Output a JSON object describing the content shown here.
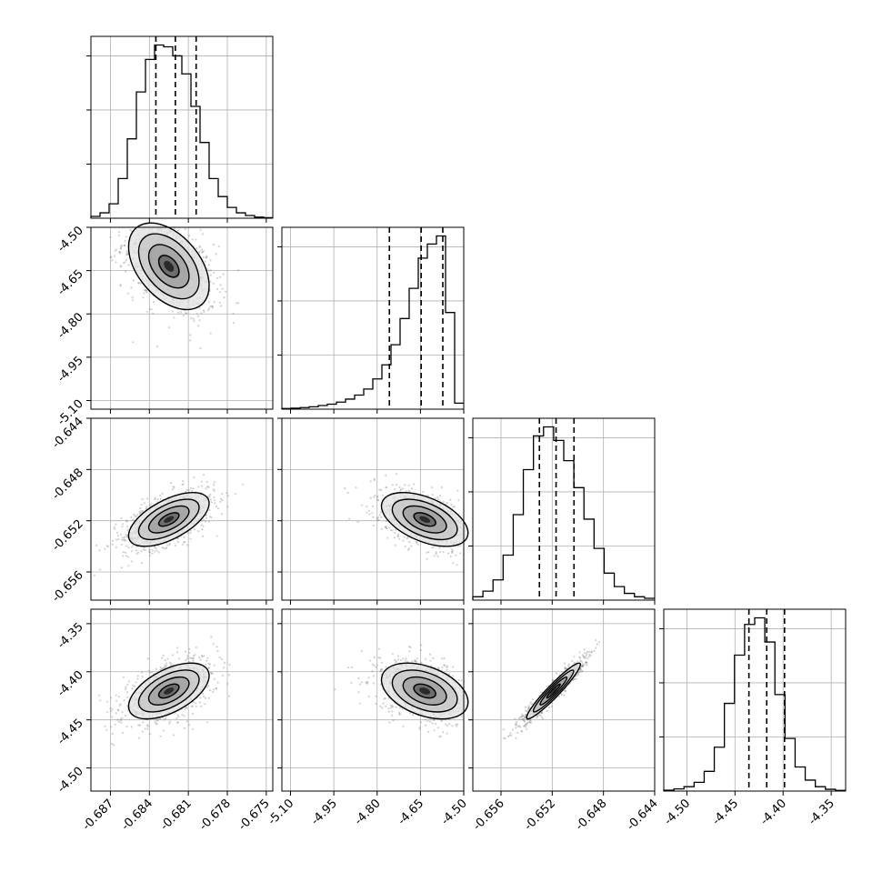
{
  "chart_data": {
    "type": "corner",
    "grid": true,
    "colors": {
      "frame": "#000000",
      "grid": "#b0b0b0",
      "hist": "#000000",
      "points": "#7f7f7f"
    },
    "quantiles": [
      0.16,
      0.5,
      0.84
    ],
    "params": [
      {
        "range": [
          -0.6885,
          -0.6745
        ],
        "ticks": [
          "-0.687",
          "-0.684",
          "-0.681",
          "-0.678",
          "-0.675"
        ],
        "tick_values": [
          -0.687,
          -0.684,
          -0.681,
          -0.678,
          -0.675
        ],
        "quantile_values": [
          -0.6835,
          -0.682,
          -0.6804
        ],
        "hist_counts": [
          1,
          3,
          8,
          22,
          44,
          70,
          88,
          96,
          95,
          90,
          80,
          62,
          42,
          22,
          12,
          6,
          3,
          1.5,
          0.6,
          0.3
        ]
      },
      {
        "range": [
          -5.13,
          -4.5
        ],
        "ticks": [
          "-5.10",
          "-4.95",
          "-4.80",
          "-4.65",
          "-4.50"
        ],
        "tick_values": [
          -5.1,
          -4.95,
          -4.8,
          -4.65,
          -4.5
        ],
        "quantile_values": [
          -4.7575,
          -4.6475,
          -4.5725
        ],
        "hist_counts": [
          0.3,
          0.5,
          0.8,
          1.2,
          1.8,
          2.5,
          3.5,
          5,
          7,
          10,
          15,
          22,
          32,
          45,
          60,
          75,
          82,
          86,
          48,
          3
        ]
      },
      {
        "range": [
          -0.6582,
          -0.644
        ],
        "ticks": [
          "-0.656",
          "-0.652",
          "-0.648",
          "-0.644"
        ],
        "tick_values": [
          -0.656,
          -0.652,
          -0.648,
          -0.644
        ],
        "quantile_values": [
          -0.653,
          -0.6517,
          -0.6503
        ],
        "hist_counts": [
          1.5,
          4,
          9,
          20,
          38,
          58,
          73,
          77,
          71,
          62,
          50,
          36,
          23,
          12,
          6,
          3,
          1.5,
          0.8
        ]
      },
      {
        "range": [
          -4.524,
          -4.335
        ],
        "ticks": [
          "-4.50",
          "-4.45",
          "-4.40",
          "-4.35"
        ],
        "tick_values": [
          -4.5,
          -4.45,
          -4.4,
          -4.35
        ],
        "quantile_values": [
          -4.4355,
          -4.417,
          -4.3985
        ],
        "hist_counts": [
          0.4,
          1,
          2,
          4,
          9,
          20,
          40,
          62,
          76,
          79,
          68,
          44,
          24,
          11,
          5,
          2,
          0.8,
          0.3
        ]
      }
    ],
    "pairs": [
      {
        "row": 1,
        "col": 0,
        "center": [
          -0.6825,
          -4.635
        ],
        "sigma": [
          0.00155,
          0.075
        ],
        "rho": -0.45
      },
      {
        "row": 2,
        "col": 0,
        "center": [
          -0.6825,
          -0.6519
        ],
        "sigma": [
          0.00155,
          0.00105
        ],
        "rho": 0.6
      },
      {
        "row": 2,
        "col": 1,
        "center": [
          -4.635,
          -0.6519
        ],
        "sigma": [
          0.075,
          0.00105
        ],
        "rho": -0.5
      },
      {
        "row": 3,
        "col": 0,
        "center": [
          -0.6825,
          -4.42
        ],
        "sigma": [
          0.00155,
          0.0145
        ],
        "rho": 0.55
      },
      {
        "row": 3,
        "col": 1,
        "center": [
          -4.635,
          -4.42
        ],
        "sigma": [
          0.075,
          0.0145
        ],
        "rho": -0.4
      },
      {
        "row": 3,
        "col": 2,
        "center": [
          -0.6519,
          -4.42
        ],
        "sigma": [
          0.00105,
          0.0145
        ],
        "rho": 0.95
      }
    ]
  }
}
